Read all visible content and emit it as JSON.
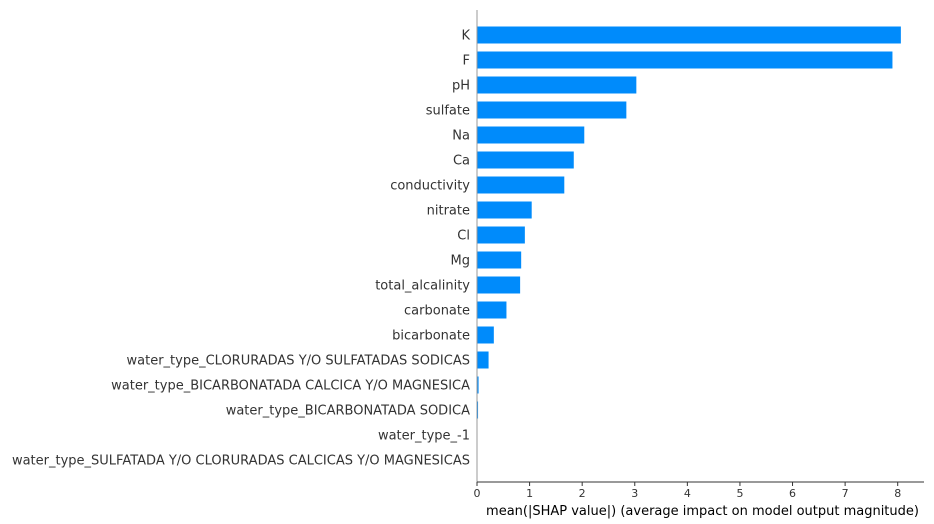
{
  "chart_data": {
    "type": "bar",
    "orientation": "horizontal",
    "title": "",
    "xlabel": "mean(|SHAP value|) (average impact on model output magnitude)",
    "ylabel": "",
    "xlim": [
      0,
      8.5
    ],
    "xticks": [
      0,
      1,
      2,
      3,
      4,
      5,
      6,
      7,
      8
    ],
    "grid": false,
    "bar_color": "#008bfb",
    "categories": [
      "K",
      "F",
      "pH",
      "sulfate",
      "Na",
      "Ca",
      "conductivity",
      "nitrate",
      "Cl",
      "Mg",
      "total_alcalinity",
      "carbonate",
      "bicarbonate",
      "water_type_CLORURADAS Y/O SULFATADAS SODICAS",
      "water_type_BICARBONATADA CALCICA Y/O MAGNESICA",
      "water_type_BICARBONATADA SODICA",
      "water_type_-1",
      "water_type_SULFATADA Y/O CLORURADAS CALCICAS Y/O MAGNESICAS"
    ],
    "values": [
      8.06,
      7.9,
      3.03,
      2.84,
      2.04,
      1.84,
      1.66,
      1.04,
      0.91,
      0.84,
      0.82,
      0.56,
      0.32,
      0.22,
      0.03,
      0.02,
      0.0,
      0.0
    ]
  }
}
